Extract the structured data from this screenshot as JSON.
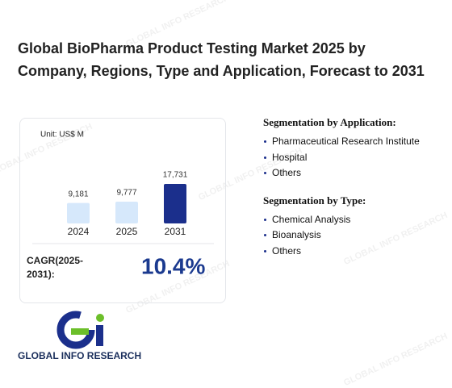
{
  "title": "Global BioPharma Product Testing Market 2025 by Company, Regions, Type and Application, Forecast to 2031",
  "chart_data": {
    "type": "bar",
    "subtitle": "Unit: US$ M",
    "categories": [
      "2024",
      "2025",
      "2031"
    ],
    "values": [
      9181,
      9777,
      17731
    ],
    "value_labels": [
      "9,181",
      "9,777",
      "17,731"
    ],
    "colors": [
      "#d6e8fb",
      "#d6e8fb",
      "#1b2f8c"
    ]
  },
  "cagr": {
    "label": "CAGR(2025-2031):",
    "value": "10.4%"
  },
  "segments": [
    {
      "heading": "Segmentation by Application:",
      "items": [
        "Pharmaceutical Research Institute",
        "Hospital",
        "Others"
      ]
    },
    {
      "heading": "Segmentation by Type:",
      "items": [
        "Chemical Analysis",
        "Bioanalysis",
        "Others"
      ]
    }
  ],
  "brand": "GLOBAL INFO RESEARCH",
  "watermark": "GLOBAL INFO RESEARCH"
}
